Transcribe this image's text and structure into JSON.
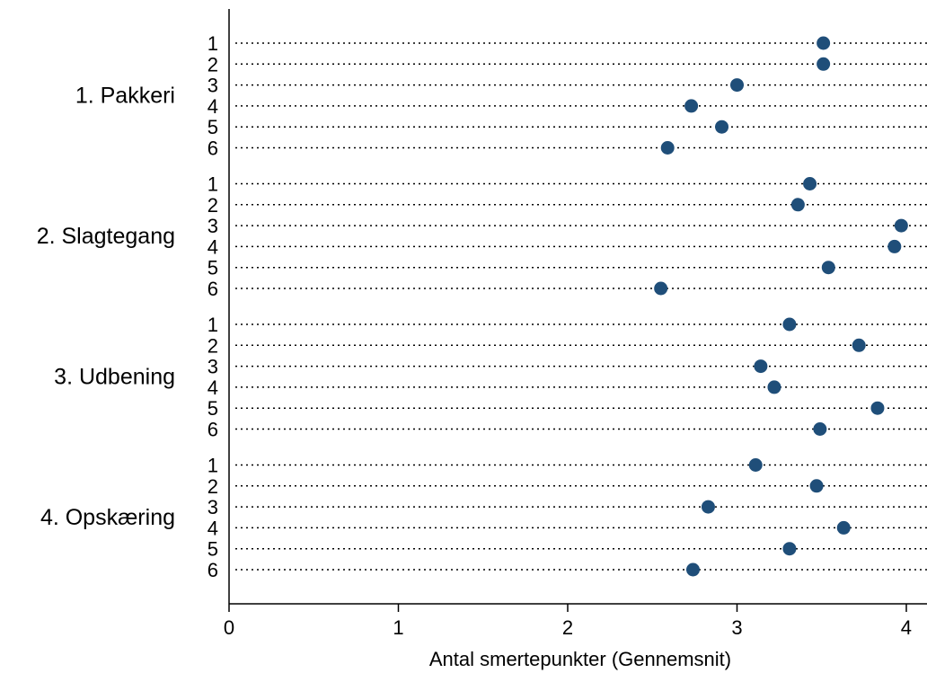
{
  "chart_data": {
    "type": "scatter",
    "title": "",
    "xlabel": "Antal smertepunkter (Gennemsnit)",
    "ylabel": "",
    "xlim": [
      0,
      4
    ],
    "xticks": [
      "0",
      "1",
      "2",
      "3",
      "4"
    ],
    "grid": "dotted horizontal lines per category",
    "marker_color": "#1f4e79",
    "groups": [
      {
        "name": "1. Pakkeri",
        "categories": [
          "1",
          "2",
          "3",
          "4",
          "5",
          "6"
        ],
        "values": [
          3.51,
          3.51,
          3.0,
          2.73,
          2.91,
          2.59
        ]
      },
      {
        "name": "2. Slagtegang",
        "categories": [
          "1",
          "2",
          "3",
          "4",
          "5",
          "6"
        ],
        "values": [
          3.43,
          3.36,
          3.97,
          3.93,
          3.54,
          2.55
        ]
      },
      {
        "name": "3. Udbening",
        "categories": [
          "1",
          "2",
          "3",
          "4",
          "5",
          "6"
        ],
        "values": [
          3.31,
          3.72,
          3.14,
          3.22,
          3.83,
          3.49
        ]
      },
      {
        "name": "4. Opskæring",
        "categories": [
          "1",
          "2",
          "3",
          "4",
          "5",
          "6"
        ],
        "values": [
          3.11,
          3.47,
          2.83,
          3.63,
          3.31,
          2.74
        ]
      }
    ]
  }
}
